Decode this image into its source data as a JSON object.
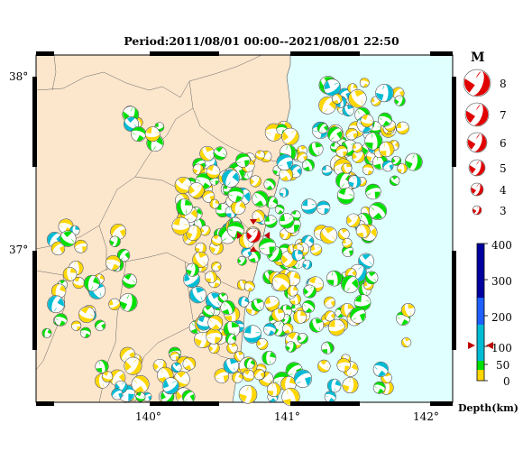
{
  "title": "Period:2011/08/01 00:00--2021/08/01 22:50",
  "latitude_labels": [
    "38°",
    "37°"
  ],
  "longitude_labels": [
    "140°",
    "141°",
    "142°"
  ],
  "magnitude_legend": {
    "heading": "M",
    "items": [
      {
        "m": "8"
      },
      {
        "m": "7"
      },
      {
        "m": "6"
      },
      {
        "m": "5"
      },
      {
        "m": "4"
      },
      {
        "m": "3"
      }
    ]
  },
  "depth_scale": {
    "title": "Depth(km)",
    "ticks": [
      "400",
      "300",
      "200",
      "100",
      "50",
      "0"
    ],
    "marker_value_km": 100
  },
  "colors": {
    "land": "#fce6cc",
    "sea": "#e0ffff",
    "shallow": "#ffd700",
    "mid": "#00e000",
    "deep": "#00bcd4",
    "main_event": "#e00000",
    "depth_400": "#0000a0",
    "depth_300": "#1e60ff"
  },
  "icons": {
    "mechanism": "beachball-icon",
    "main_event_marker": "triangle-marker-icon"
  }
}
